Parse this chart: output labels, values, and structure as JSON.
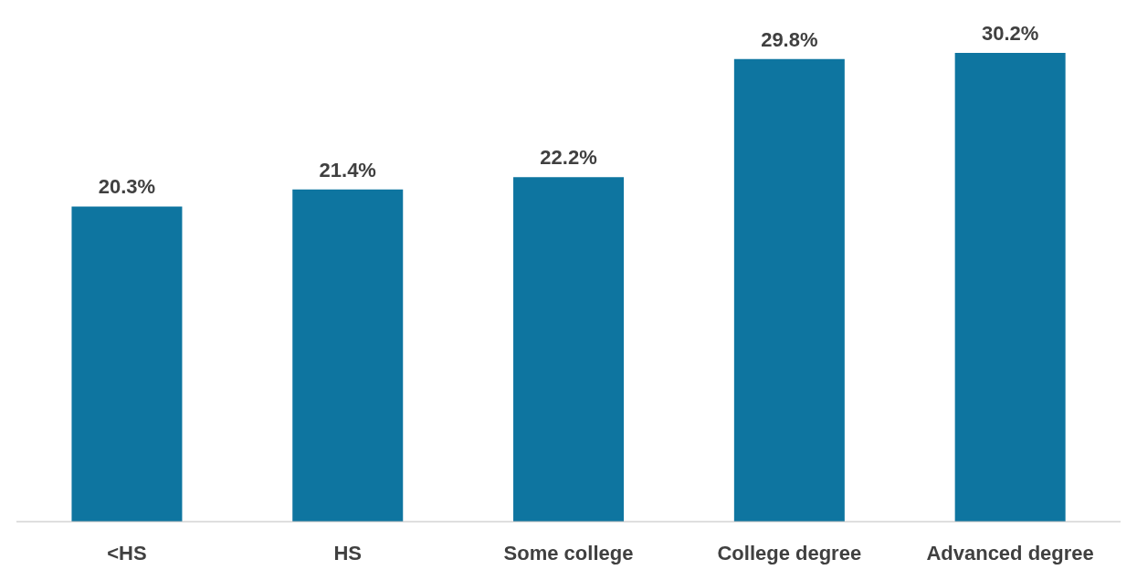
{
  "chart_data": {
    "type": "bar",
    "categories": [
      "<HS",
      "HS",
      "Some college",
      "College degree",
      "Advanced degree"
    ],
    "values": [
      20.3,
      21.4,
      22.2,
      29.8,
      30.2
    ],
    "value_labels": [
      "20.3%",
      "21.4%",
      "22.2%",
      "29.8%",
      "30.2%"
    ],
    "color": "#0e75a0",
    "grid": false,
    "legend": false
  }
}
